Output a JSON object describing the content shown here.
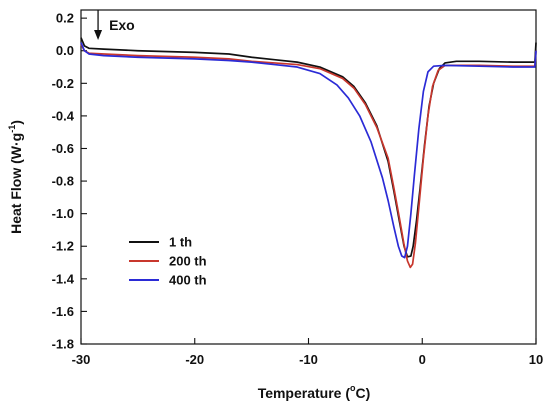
{
  "chart_data": {
    "type": "line",
    "xlabel": "Temperature (°C)",
    "xlabel_main": "Temperature (",
    "xlabel_deg": "o",
    "xlabel_unit": "C)",
    "ylabel": "Heat Flow (W·g⁻¹)",
    "ylabel_main": "Heat Flow (W·g",
    "ylabel_sup": "-1",
    "ylabel_close": ")",
    "xlim": [
      -30,
      10
    ],
    "ylim": [
      -1.8,
      0.25
    ],
    "x_ticks": [
      -30,
      -20,
      -10,
      0,
      10
    ],
    "y_ticks": [
      0.2,
      0.0,
      -0.2,
      -0.4,
      -0.6,
      -0.8,
      -1.0,
      -1.2,
      -1.4,
      -1.6,
      -1.8
    ],
    "x_tick_labels": [
      "-30",
      "-20",
      "-10",
      "0",
      "10"
    ],
    "y_tick_labels": [
      "0.2",
      "0.0",
      "-0.2",
      "-0.4",
      "-0.6",
      "-0.8",
      "-1.0",
      "-1.2",
      "-1.4",
      "-1.6",
      "-1.8"
    ],
    "grid": false,
    "legend_position": "lower-left",
    "annotation": {
      "text": "Exo",
      "arrow": "down",
      "x": -28.5
    },
    "series": [
      {
        "name": "1 th",
        "color": "#111111",
        "points": [
          [
            -30,
            0.08
          ],
          [
            -29.7,
            0.03
          ],
          [
            -29.3,
            0.015
          ],
          [
            -28,
            0.01
          ],
          [
            -25,
            0.0
          ],
          [
            -20,
            -0.01
          ],
          [
            -17,
            -0.02
          ],
          [
            -15,
            -0.04
          ],
          [
            -13,
            -0.055
          ],
          [
            -11,
            -0.07
          ],
          [
            -9,
            -0.1
          ],
          [
            -7,
            -0.16
          ],
          [
            -6,
            -0.22
          ],
          [
            -5,
            -0.32
          ],
          [
            -4,
            -0.46
          ],
          [
            -3,
            -0.68
          ],
          [
            -2.5,
            -0.86
          ],
          [
            -2,
            -1.05
          ],
          [
            -1.6,
            -1.2
          ],
          [
            -1.3,
            -1.265
          ],
          [
            -1.0,
            -1.26
          ],
          [
            -0.8,
            -1.2
          ],
          [
            -0.5,
            -1.04
          ],
          [
            -0.2,
            -0.85
          ],
          [
            0.2,
            -0.58
          ],
          [
            0.6,
            -0.34
          ],
          [
            1.0,
            -0.2
          ],
          [
            1.5,
            -0.11
          ],
          [
            2,
            -0.075
          ],
          [
            3,
            -0.065
          ],
          [
            5,
            -0.065
          ],
          [
            8,
            -0.07
          ],
          [
            9.9,
            -0.07
          ],
          [
            10,
            0.05
          ]
        ]
      },
      {
        "name": "200 th",
        "color": "#c8372d",
        "points": [
          [
            -30,
            0.04
          ],
          [
            -29.7,
            0.0
          ],
          [
            -29.3,
            -0.015
          ],
          [
            -28,
            -0.02
          ],
          [
            -25,
            -0.03
          ],
          [
            -20,
            -0.04
          ],
          [
            -17,
            -0.05
          ],
          [
            -15,
            -0.065
          ],
          [
            -13,
            -0.075
          ],
          [
            -11,
            -0.085
          ],
          [
            -9,
            -0.11
          ],
          [
            -7,
            -0.17
          ],
          [
            -6,
            -0.23
          ],
          [
            -5,
            -0.33
          ],
          [
            -4,
            -0.47
          ],
          [
            -3,
            -0.66
          ],
          [
            -2.5,
            -0.84
          ],
          [
            -2,
            -1.03
          ],
          [
            -1.6,
            -1.19
          ],
          [
            -1.3,
            -1.29
          ],
          [
            -1.05,
            -1.33
          ],
          [
            -0.85,
            -1.31
          ],
          [
            -0.6,
            -1.18
          ],
          [
            -0.3,
            -0.96
          ],
          [
            0.1,
            -0.66
          ],
          [
            0.5,
            -0.4
          ],
          [
            0.9,
            -0.22
          ],
          [
            1.4,
            -0.12
          ],
          [
            2,
            -0.09
          ],
          [
            3,
            -0.09
          ],
          [
            5,
            -0.09
          ],
          [
            8,
            -0.095
          ],
          [
            9.9,
            -0.095
          ],
          [
            10,
            0.0
          ]
        ]
      },
      {
        "name": "400 th",
        "color": "#2b2bd6",
        "points": [
          [
            -30,
            0.05
          ],
          [
            -29.7,
            0.0
          ],
          [
            -29.3,
            -0.02
          ],
          [
            -28,
            -0.03
          ],
          [
            -25,
            -0.04
          ],
          [
            -20,
            -0.05
          ],
          [
            -17,
            -0.06
          ],
          [
            -15,
            -0.07
          ],
          [
            -13,
            -0.085
          ],
          [
            -11,
            -0.1
          ],
          [
            -9,
            -0.14
          ],
          [
            -7.5,
            -0.21
          ],
          [
            -6.5,
            -0.29
          ],
          [
            -5.5,
            -0.4
          ],
          [
            -4.5,
            -0.56
          ],
          [
            -3.5,
            -0.78
          ],
          [
            -3,
            -0.92
          ],
          [
            -2.5,
            -1.08
          ],
          [
            -2.1,
            -1.2
          ],
          [
            -1.8,
            -1.26
          ],
          [
            -1.55,
            -1.27
          ],
          [
            -1.3,
            -1.2
          ],
          [
            -1.0,
            -1.0
          ],
          [
            -0.7,
            -0.77
          ],
          [
            -0.3,
            -0.48
          ],
          [
            0.1,
            -0.25
          ],
          [
            0.5,
            -0.13
          ],
          [
            1.0,
            -0.095
          ],
          [
            2,
            -0.09
          ],
          [
            5,
            -0.095
          ],
          [
            8,
            -0.1
          ],
          [
            9.9,
            -0.1
          ],
          [
            10,
            0.0
          ]
        ]
      }
    ]
  }
}
